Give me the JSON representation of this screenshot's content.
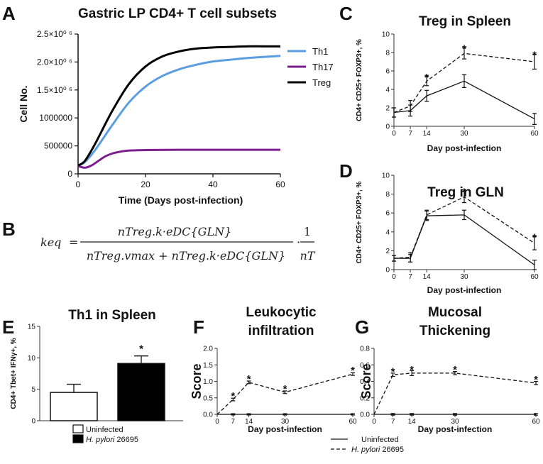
{
  "equation": {
    "lhs": "keq",
    "equals": "=",
    "numerator": "nTreg.k·eDC{GLN}",
    "denominator": "nTreg.vmax + nTreg.k·eDC{GLN}",
    "dot": "·",
    "factor_num": "1",
    "factor_den": "nT"
  },
  "chart_data": [
    {
      "panel": "A",
      "type": "line",
      "title": "Gastric LP CD4+ T cell subsets",
      "xlabel": "Time (Days post-infection)",
      "ylabel": "Cell No.",
      "xlim": [
        0,
        60
      ],
      "ylim": [
        0,
        2500000
      ],
      "xticks": [
        0,
        20,
        40,
        60
      ],
      "yticks": [
        0,
        500000,
        1000000,
        1500000,
        2000000,
        2500000
      ],
      "ytick_labels": [
        "0",
        "500000",
        "1000000",
        "1.5×10⁰ ⁶",
        "2.0×10⁰ ⁶",
        "2.5×10⁰ ⁶"
      ],
      "legend_position": "top-right",
      "series": [
        {
          "name": "Th1",
          "color": "#5b9ee0",
          "x": [
            0,
            2,
            5,
            10,
            15,
            20,
            25,
            30,
            35,
            40,
            45,
            50,
            55,
            60
          ],
          "y": [
            150000,
            210000,
            420000,
            860000,
            1270000,
            1560000,
            1750000,
            1870000,
            1950000,
            2010000,
            2040000,
            2070000,
            2090000,
            2110000
          ]
        },
        {
          "name": "Th17",
          "color": "#7b1f8e",
          "x": [
            0,
            2,
            4,
            6,
            8,
            10,
            12,
            15,
            20,
            30,
            40,
            50,
            60
          ],
          "y": [
            140000,
            110000,
            150000,
            230000,
            310000,
            360000,
            390000,
            415000,
            425000,
            430000,
            430000,
            430000,
            430000
          ]
        },
        {
          "name": "Treg",
          "color": "#000000",
          "x": [
            0,
            2,
            5,
            10,
            15,
            20,
            25,
            30,
            35,
            40,
            45,
            50,
            55,
            60
          ],
          "y": [
            150000,
            230000,
            530000,
            1110000,
            1600000,
            1920000,
            2100000,
            2190000,
            2240000,
            2260000,
            2270000,
            2280000,
            2280000,
            2280000
          ]
        }
      ]
    },
    {
      "panel": "C",
      "type": "line",
      "title": "Treg in Spleen",
      "xlabel": "Day post-infection",
      "ylabel": "CD4+ CD25+ FOXP3+, %",
      "xlim": [
        0,
        60
      ],
      "ylim": [
        0,
        10
      ],
      "xticks": [
        0,
        7,
        14,
        30,
        60
      ],
      "yticks": [
        0,
        2,
        4,
        6,
        8,
        10
      ],
      "series": [
        {
          "name": "Uninfected",
          "style": "solid",
          "x": [
            0,
            7,
            14,
            30,
            60
          ],
          "y": [
            1.5,
            1.7,
            3.3,
            4.9,
            0.8
          ],
          "err": [
            0.5,
            0.6,
            0.6,
            0.7,
            0.6
          ]
        },
        {
          "name": "H. pylori 26695",
          "style": "dashed",
          "x": [
            0,
            7,
            14,
            30,
            60
          ],
          "y": [
            1.5,
            2.2,
            4.9,
            7.9,
            7.0
          ],
          "err": [
            0.5,
            0.6,
            0.5,
            0.6,
            0.8
          ]
        }
      ],
      "annotations": [
        {
          "x": 14,
          "y": 5.4,
          "text": "*"
        },
        {
          "x": 30,
          "y": 8.5,
          "text": "*"
        },
        {
          "x": 60,
          "y": 7.8,
          "text": "*"
        }
      ]
    },
    {
      "panel": "D",
      "type": "line",
      "title": "Treg in GLN",
      "xlabel": "Day post-infection",
      "ylabel": "CD4+ CD25+ FOXP3+, %",
      "xlim": [
        0,
        60
      ],
      "ylim": [
        0,
        10
      ],
      "xticks": [
        0,
        7,
        14,
        30,
        60
      ],
      "yticks": [
        0,
        2,
        4,
        6,
        8,
        10
      ],
      "series": [
        {
          "name": "Uninfected",
          "style": "solid",
          "x": [
            0,
            7,
            14,
            30,
            60
          ],
          "y": [
            1.2,
            1.2,
            5.7,
            5.8,
            0.5
          ],
          "err": [
            0.3,
            0.4,
            0.5,
            0.5,
            0.5
          ]
        },
        {
          "name": "H. pylori 26695",
          "style": "dashed",
          "x": [
            0,
            7,
            14,
            30,
            60
          ],
          "y": [
            1.2,
            1.3,
            5.8,
            7.7,
            2.8
          ],
          "err": [
            0.3,
            0.5,
            0.5,
            0.6,
            0.7
          ]
        }
      ],
      "annotations": [
        {
          "x": 30,
          "y": 8.3,
          "text": "*"
        },
        {
          "x": 60,
          "y": 3.5,
          "text": "*"
        }
      ]
    },
    {
      "panel": "E",
      "type": "bar",
      "title": "Th1 in Spleen",
      "ylabel": "CD4+ Tbet+ IFNγ+, %",
      "ylim": [
        0,
        15
      ],
      "yticks": [
        0,
        5,
        10,
        15
      ],
      "categories": [
        "Uninfected",
        "H. pylori 26695"
      ],
      "values": [
        4.5,
        9.1
      ],
      "err": [
        1.3,
        1.2
      ],
      "colors": [
        "#ffffff",
        "#000000"
      ],
      "annotations": [
        {
          "category": "H. pylori 26695",
          "text": "*"
        }
      ]
    },
    {
      "panel": "F",
      "type": "line",
      "title": "Leukocytic infiltration",
      "xlabel": "Day post-infection",
      "ylabel": "Score",
      "xlim": [
        0,
        60
      ],
      "ylim": [
        0,
        2.0
      ],
      "xticks": [
        0,
        7,
        14,
        30,
        60
      ],
      "yticks": [
        0,
        0.5,
        1.0,
        1.5,
        2.0
      ],
      "ytick_labels": [
        "0.0",
        "0.5",
        "1.0",
        "1.5",
        "2.0"
      ],
      "series": [
        {
          "name": "Uninfected",
          "style": "solid",
          "x": [
            0,
            7,
            14,
            30,
            60
          ],
          "y": [
            0,
            0,
            0,
            0,
            0
          ],
          "err": [
            0,
            0.02,
            0.02,
            0.02,
            0.02
          ]
        },
        {
          "name": "H. pylori 26695",
          "style": "dashed",
          "x": [
            0,
            7,
            14,
            30,
            60
          ],
          "y": [
            0,
            0.45,
            0.97,
            0.67,
            1.22
          ],
          "err": [
            0,
            0.04,
            0.04,
            0.04,
            0.04
          ]
        }
      ],
      "annotations": [
        {
          "x": 7,
          "y": 0.58,
          "text": "*"
        },
        {
          "x": 14,
          "y": 1.1,
          "text": "*"
        },
        {
          "x": 30,
          "y": 0.8,
          "text": "*"
        },
        {
          "x": 60,
          "y": 1.35,
          "text": "*"
        }
      ]
    },
    {
      "panel": "G",
      "type": "line",
      "title": "Mucosal Thickening",
      "xlabel": "Day post-infection",
      "ylabel": "Score",
      "xlim": [
        0,
        60
      ],
      "ylim": [
        0,
        0.8
      ],
      "xticks": [
        0,
        7,
        14,
        30,
        60
      ],
      "yticks": [
        0,
        0.2,
        0.4,
        0.6,
        0.8
      ],
      "ytick_labels": [
        "0.0",
        "0.2",
        "0.4",
        "0.6",
        "0.8"
      ],
      "series": [
        {
          "name": "Uninfected",
          "style": "solid",
          "x": [
            0,
            7,
            14,
            30,
            60
          ],
          "y": [
            0,
            0,
            0,
            0,
            0
          ],
          "err": [
            0,
            0.01,
            0.01,
            0.01,
            0.01
          ]
        },
        {
          "name": "H. pylori 26695",
          "style": "dashed",
          "x": [
            0,
            7,
            14,
            30,
            60
          ],
          "y": [
            0,
            0.48,
            0.5,
            0.5,
            0.38
          ],
          "err": [
            0,
            0.02,
            0.03,
            0.02,
            0.02
          ]
        }
      ],
      "annotations": [
        {
          "x": 7,
          "y": 0.53,
          "text": "*"
        },
        {
          "x": 14,
          "y": 0.55,
          "text": "*"
        },
        {
          "x": 30,
          "y": 0.55,
          "text": "*"
        },
        {
          "x": 60,
          "y": 0.43,
          "text": "*"
        }
      ]
    }
  ]
}
